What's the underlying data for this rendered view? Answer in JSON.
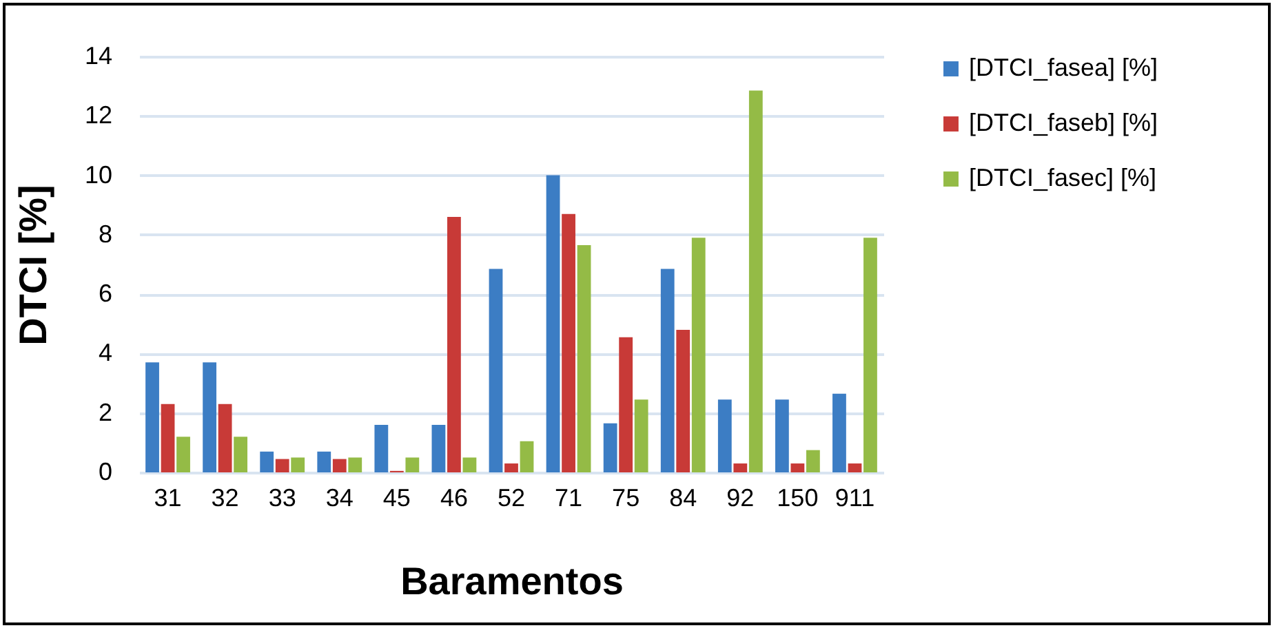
{
  "chart_data": {
    "type": "bar",
    "xlabel": "Baramentos",
    "ylabel": "DTCI [%]",
    "categories": [
      "31",
      "32",
      "33",
      "34",
      "45",
      "46",
      "52",
      "71",
      "75",
      "84",
      "92",
      "150",
      "911"
    ],
    "series": [
      {
        "name": "[DTCI_fasea] [%]",
        "color": "#3c7dc4",
        "values": [
          3.7,
          3.7,
          0.7,
          0.7,
          1.6,
          1.6,
          6.85,
          10,
          1.65,
          6.85,
          2.45,
          2.45,
          2.65
        ]
      },
      {
        "name": "[DTCI_faseb] [%]",
        "color": "#c83a37",
        "values": [
          2.3,
          2.3,
          0.45,
          0.45,
          0.05,
          8.6,
          0.3,
          8.7,
          4.55,
          4.8,
          0.3,
          0.3,
          0.3
        ]
      },
      {
        "name": "[DTCI_fasec] [%]",
        "color": "#94bb46",
        "values": [
          1.2,
          1.2,
          0.5,
          0.5,
          0.5,
          0.5,
          1.05,
          7.65,
          2.45,
          7.9,
          12.85,
          0.75,
          7.9
        ]
      }
    ],
    "ylim": [
      0,
      14
    ],
    "yticks": [
      0,
      2,
      4,
      6,
      8,
      10,
      12,
      14
    ],
    "grid": "y",
    "legend": "right"
  }
}
